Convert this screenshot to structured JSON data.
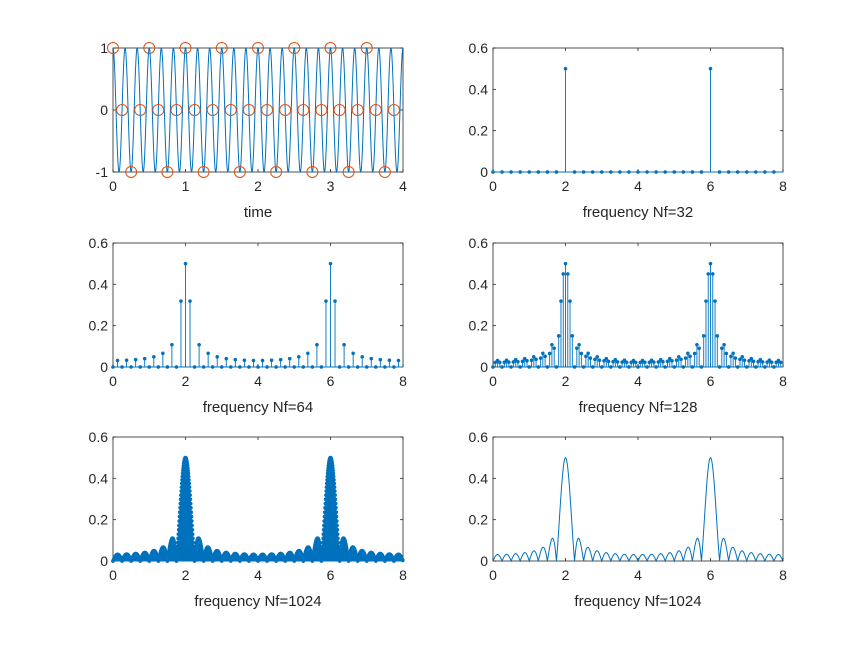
{
  "colors": {
    "series": "#0072BD",
    "samples": "#D95319",
    "axes": "#262626"
  },
  "chart_data": [
    {
      "id": "time",
      "type": "line",
      "xlabel": "time",
      "xlim": [
        0,
        4
      ],
      "ylim": [
        -1,
        1
      ],
      "xticks": [
        0,
        1,
        2,
        3,
        4
      ],
      "yticks": [
        -1,
        0,
        1
      ],
      "grid": false,
      "series": [
        {
          "kind": "sinusoid",
          "frequency": 6,
          "phase": "cos",
          "color": "#0072BD"
        },
        {
          "kind": "samples",
          "marker": "circle",
          "fs": 8,
          "n": 32,
          "color": "#D95319"
        }
      ]
    },
    {
      "id": "nf32",
      "type": "stem",
      "xlabel": "frequency Nf=32",
      "xlim": [
        0,
        8
      ],
      "ylim": [
        0,
        0.6
      ],
      "xticks": [
        0,
        2,
        4,
        6,
        8
      ],
      "yticks": [
        0,
        0.2,
        0.4,
        0.6
      ],
      "series": [
        {
          "kind": "spectrum",
          "nf": 32,
          "peaks": [
            2,
            6
          ],
          "peak_value": 0.5,
          "color": "#0072BD"
        }
      ]
    },
    {
      "id": "nf64",
      "type": "stem",
      "xlabel": "frequency Nf=64",
      "xlim": [
        0,
        8
      ],
      "ylim": [
        0,
        0.6
      ],
      "xticks": [
        0,
        2,
        4,
        6,
        8
      ],
      "yticks": [
        0,
        0.2,
        0.4,
        0.6
      ],
      "series": [
        {
          "kind": "spectrum",
          "nf": 64,
          "peaks": [
            2,
            6
          ],
          "peak_value": 0.5,
          "color": "#0072BD"
        }
      ]
    },
    {
      "id": "nf128",
      "type": "stem",
      "xlabel": "frequency Nf=128",
      "xlim": [
        0,
        8
      ],
      "ylim": [
        0,
        0.6
      ],
      "xticks": [
        0,
        2,
        4,
        6,
        8
      ],
      "yticks": [
        0,
        0.2,
        0.4,
        0.6
      ],
      "series": [
        {
          "kind": "spectrum",
          "nf": 128,
          "peaks": [
            2,
            6
          ],
          "peak_value": 0.5,
          "color": "#0072BD"
        }
      ]
    },
    {
      "id": "nf1024stem",
      "type": "stem",
      "xlabel": "frequency Nf=1024",
      "xlim": [
        0,
        8
      ],
      "ylim": [
        0,
        0.6
      ],
      "xticks": [
        0,
        2,
        4,
        6,
        8
      ],
      "yticks": [
        0,
        0.2,
        0.4,
        0.6
      ],
      "series": [
        {
          "kind": "spectrum",
          "nf": 1024,
          "peaks": [
            2,
            6
          ],
          "peak_value": 0.5,
          "color": "#0072BD"
        }
      ]
    },
    {
      "id": "nf1024line",
      "type": "line",
      "xlabel": "frequency Nf=1024",
      "xlim": [
        0,
        8
      ],
      "ylim": [
        0,
        0.6
      ],
      "xticks": [
        0,
        2,
        4,
        6,
        8
      ],
      "yticks": [
        0,
        0.2,
        0.4,
        0.6
      ],
      "series": [
        {
          "kind": "spectrum",
          "nf": 1024,
          "peaks": [
            2,
            6
          ],
          "peak_value": 0.5,
          "color": "#0072BD"
        }
      ]
    }
  ]
}
